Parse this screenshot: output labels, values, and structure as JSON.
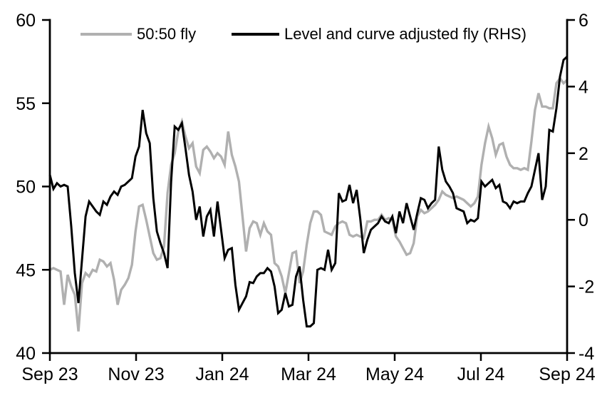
{
  "chart_data": {
    "type": "line",
    "title": "",
    "grid": "off",
    "legend_position": "top",
    "x_axis": {
      "tick_labels": [
        "Sep 23",
        "Nov 23",
        "Jan 24",
        "Mar 24",
        "May 24",
        "Jul 24",
        "Sep 24"
      ]
    },
    "left_axis": {
      "range": [
        40,
        60
      ],
      "ticks": [
        40,
        45,
        50,
        55,
        60
      ]
    },
    "right_axis": {
      "range": [
        -4,
        6
      ],
      "ticks": [
        -4,
        -2,
        0,
        2,
        4,
        6
      ]
    },
    "series": [
      {
        "name": "50:50 fly",
        "axis": "left",
        "color": "#b0b0b0",
        "line_width": 3.4,
        "values": [
          45.0,
          45.1,
          45.0,
          44.9,
          42.9,
          44.7,
          44.0,
          43.5,
          41.3,
          44.2,
          44.8,
          44.6,
          45.0,
          44.9,
          45.6,
          45.5,
          45.2,
          45.4,
          44.4,
          42.9,
          43.8,
          44.1,
          44.5,
          45.3,
          47.3,
          48.8,
          48.9,
          48.0,
          47.0,
          46.0,
          45.6,
          45.7,
          46.4,
          49.6,
          51.3,
          52.0,
          53.3,
          53.9,
          53.0,
          52.3,
          52.6,
          51.2,
          50.8,
          52.2,
          52.4,
          52.1,
          51.7,
          52.0,
          51.8,
          51.3,
          53.3,
          51.9,
          51.2,
          50.3,
          48.2,
          46.1,
          47.5,
          47.9,
          47.8,
          47.1,
          47.8,
          47.3,
          47.1,
          45.4,
          45.2,
          44.6,
          43.6,
          44.8,
          46.0,
          46.1,
          44.2,
          44.9,
          46.5,
          47.8,
          48.5,
          48.5,
          48.3,
          47.3,
          47.2,
          47.1,
          47.6,
          47.8,
          47.9,
          47.8,
          47.1,
          47.0,
          47.1,
          47.0,
          46.9,
          47.9,
          47.9,
          48.0,
          48.0,
          48.3,
          48.0,
          48.1,
          48.0,
          47.0,
          46.7,
          46.3,
          45.9,
          46.0,
          46.6,
          48.2,
          48.6,
          48.4,
          48.5,
          48.7,
          48.9,
          49.2,
          49.7,
          49.5,
          49.4,
          49.3,
          49.4,
          49.3,
          49.2,
          49.0,
          48.8,
          49.0,
          49.4,
          51.3,
          52.6,
          53.6,
          52.9,
          51.9,
          52.5,
          52.6,
          51.8,
          51.3,
          51.1,
          51.1,
          51.0,
          51.1,
          51.0,
          52.7,
          54.6,
          55.6,
          54.8,
          54.8,
          54.7,
          54.7,
          56.2,
          56.5,
          56.2,
          56.4
        ]
      },
      {
        "name": "Level and curve adjusted fly (RHS)",
        "axis": "right",
        "color": "#000000",
        "line_width": 3.0,
        "values": [
          1.35,
          0.93,
          1.1,
          1.0,
          1.05,
          1.0,
          -0.2,
          -1.6,
          -2.5,
          -1.2,
          0.1,
          0.55,
          0.4,
          0.25,
          0.15,
          0.55,
          0.45,
          0.7,
          0.85,
          0.75,
          1.0,
          1.05,
          1.15,
          1.25,
          1.9,
          2.2,
          3.3,
          2.6,
          2.3,
          0.65,
          -0.35,
          -0.7,
          -1.0,
          -1.45,
          1.15,
          2.8,
          2.7,
          2.9,
          2.15,
          1.35,
          0.85,
          0.0,
          0.4,
          -0.5,
          0.1,
          0.3,
          -0.5,
          0.55,
          -0.3,
          -1.15,
          -0.9,
          -0.85,
          -1.95,
          -2.7,
          -2.5,
          -2.3,
          -1.87,
          -1.9,
          -1.7,
          -1.6,
          -1.6,
          -1.45,
          -1.55,
          -2.0,
          -2.8,
          -2.7,
          -2.2,
          -2.6,
          -2.55,
          -1.7,
          -1.4,
          -2.4,
          -3.2,
          -3.2,
          -3.1,
          -1.5,
          -1.45,
          -1.5,
          -0.9,
          -1.5,
          -1.3,
          0.8,
          0.55,
          0.6,
          1.05,
          0.5,
          0.9,
          0.05,
          -1.0,
          -0.6,
          -0.3,
          -0.2,
          -0.1,
          0.1,
          -0.05,
          -0.1,
          0.1,
          -0.4,
          0.25,
          -0.1,
          0.5,
          0.1,
          -0.3,
          0.2,
          0.65,
          0.6,
          0.35,
          0.5,
          0.6,
          2.2,
          1.5,
          1.15,
          1.0,
          0.8,
          0.35,
          0.3,
          0.25,
          -0.1,
          0.0,
          -0.05,
          0.05,
          1.15,
          1.0,
          1.1,
          1.2,
          0.95,
          1.05,
          0.55,
          0.5,
          0.35,
          0.55,
          0.5,
          0.55,
          0.55,
          0.8,
          1.0,
          1.5,
          2.0,
          0.6,
          1.0,
          2.7,
          2.65,
          3.35,
          4.3,
          4.8,
          4.9
        ]
      }
    ]
  },
  "colors": {
    "background": "#ffffff",
    "axis": "#000000",
    "text": "#000000"
  }
}
